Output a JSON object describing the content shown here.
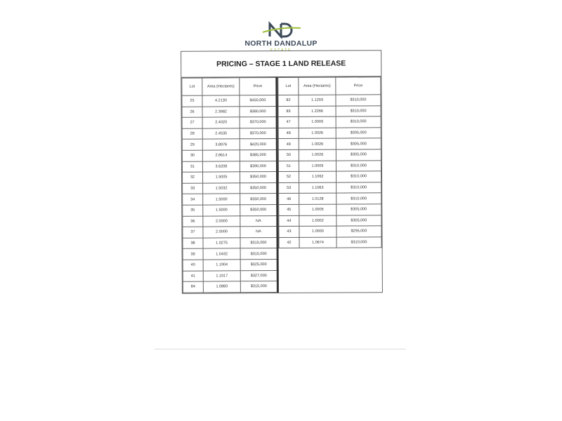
{
  "logo": {
    "brand": "NORTH DANDALUP",
    "sub": "ESTATE",
    "colors": {
      "green": "#9bbf3a",
      "navy": "#3d4a5a"
    }
  },
  "title": "PRICING – STAGE 1 LAND RELEASE",
  "headers": {
    "lot": "Lot",
    "area": "Area (Hectares)",
    "price": "Price"
  },
  "left": [
    [
      "25",
      "4.2130",
      "$450,000"
    ],
    [
      "26",
      "2.3982",
      "$380,000"
    ],
    [
      "27",
      "2.4020",
      "$370,000"
    ],
    [
      "28",
      "2.4535",
      "$370,000"
    ],
    [
      "29",
      "3.8976",
      "$420,000"
    ],
    [
      "30",
      "2.8614",
      "$385,000"
    ],
    [
      "31",
      "3.6208",
      "$390,000"
    ],
    [
      "32",
      "1.5005",
      "$350,000"
    ],
    [
      "33",
      "1.5032",
      "$350,000"
    ],
    [
      "34",
      "1.5000",
      "$350,000"
    ],
    [
      "35",
      "1.5000",
      "$350,000"
    ],
    [
      "36",
      "2.0000",
      "NA"
    ],
    [
      "37",
      "2.0000",
      "NA"
    ],
    [
      "38",
      "1.0275",
      "$315,000"
    ],
    [
      "39",
      "1.0432",
      "$315,000"
    ],
    [
      "40",
      "1.1904",
      "$325,000"
    ],
    [
      "41",
      "1.1917",
      "$327,000"
    ],
    [
      "84",
      "1.0860",
      "$315,000"
    ]
  ],
  "right": [
    [
      "82",
      "1.1293",
      "$310,000"
    ],
    [
      "83",
      "1.2266",
      "$310,000"
    ],
    [
      "47",
      "1.0009",
      "$310,000"
    ],
    [
      "48",
      "1.0026",
      "$305,000"
    ],
    [
      "49",
      "1.0026",
      "$305,000"
    ],
    [
      "50",
      "1.0026",
      "$305,000"
    ],
    [
      "51",
      "1.0009",
      "$310,000"
    ],
    [
      "52",
      "1.1062",
      "$310,000"
    ],
    [
      "53",
      "1.1063",
      "$310,000"
    ],
    [
      "46",
      "1.0128",
      "$310,000"
    ],
    [
      "45",
      "1.0005",
      "$305,000"
    ],
    [
      "44",
      "1.0002",
      "$305,000"
    ],
    [
      "43",
      "1.0000",
      "$295,000"
    ],
    [
      "42",
      "1.0674",
      "$310,000"
    ]
  ]
}
